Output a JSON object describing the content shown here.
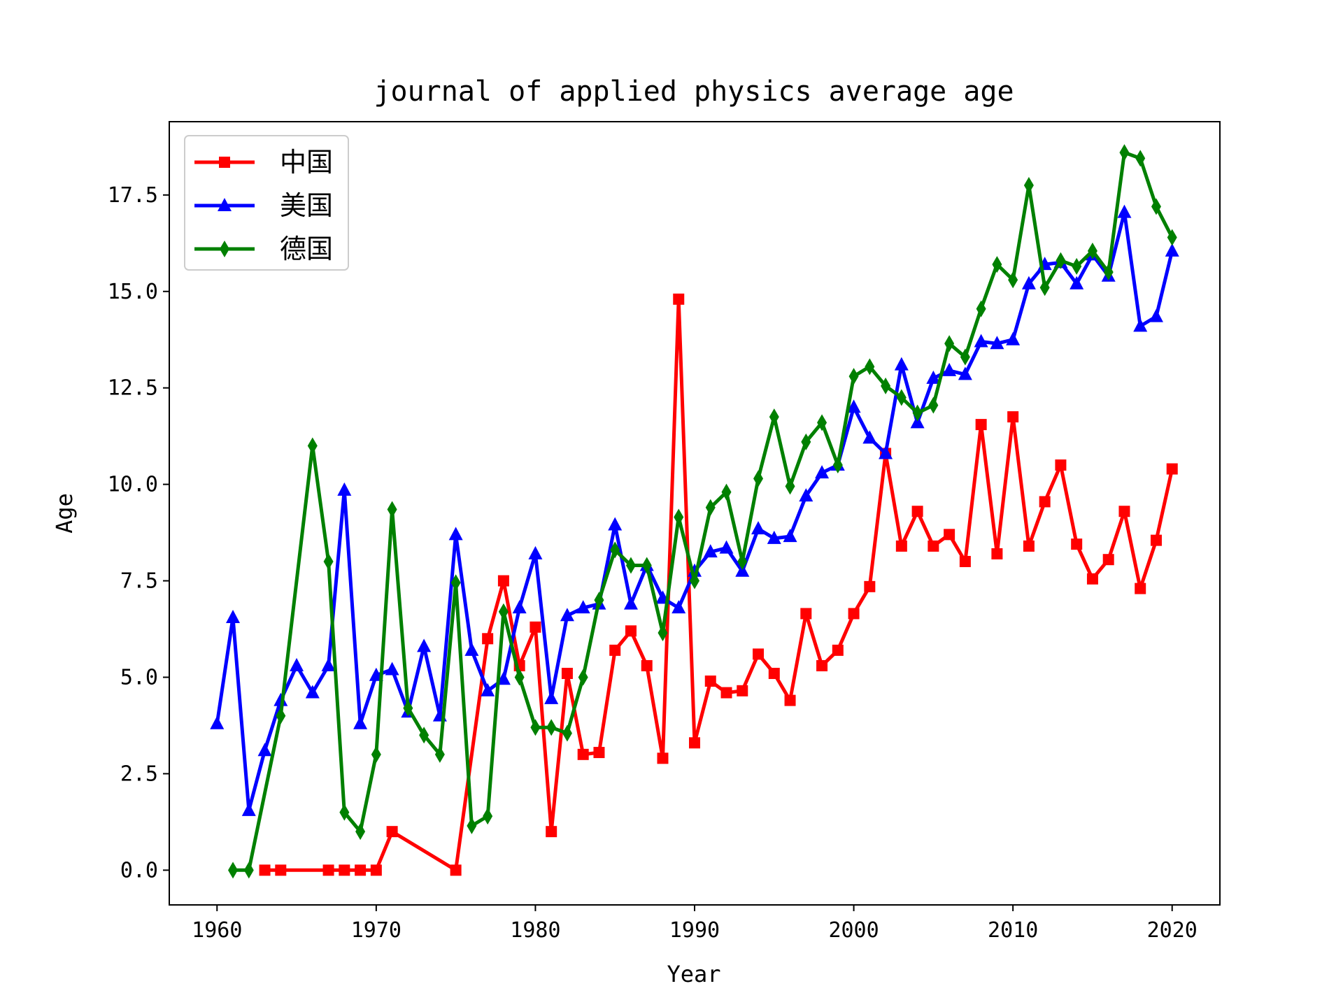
{
  "chart_data": {
    "type": "line",
    "title": "journal of applied physics average age",
    "xlabel": "Year",
    "ylabel": "Age",
    "xlim": [
      1957,
      2023
    ],
    "ylim": [
      -0.9,
      19.4
    ],
    "x_ticks": [
      1960,
      1970,
      1980,
      1990,
      2000,
      2010,
      2020
    ],
    "y_ticks": [
      0.0,
      2.5,
      5.0,
      7.5,
      10.0,
      12.5,
      15.0,
      17.5
    ],
    "y_tick_labels": [
      "0.0",
      "2.5",
      "5.0",
      "7.5",
      "10.0",
      "12.5",
      "15.0",
      "17.5"
    ],
    "x_tick_labels": [
      "1960",
      "1970",
      "1980",
      "1990",
      "2000",
      "2010",
      "2020"
    ],
    "grid": false,
    "legend_position": "top-left",
    "series": [
      {
        "name": "中国",
        "color": "#ff0000",
        "marker": "square",
        "points": [
          [
            1963,
            0
          ],
          [
            1964,
            0
          ],
          [
            1967,
            0
          ],
          [
            1968,
            0
          ],
          [
            1969,
            0
          ],
          [
            1970,
            0
          ],
          [
            1971,
            1.0
          ],
          [
            1975,
            0
          ],
          [
            1977,
            6.0
          ],
          [
            1978,
            7.5
          ],
          [
            1979,
            5.3
          ],
          [
            1980,
            6.3
          ],
          [
            1981,
            1.0
          ],
          [
            1982,
            5.1
          ],
          [
            1983,
            3.0
          ],
          [
            1984,
            3.05
          ],
          [
            1985,
            5.7
          ],
          [
            1986,
            6.2
          ],
          [
            1987,
            5.3
          ],
          [
            1988,
            2.9
          ],
          [
            1989,
            14.8
          ],
          [
            1990,
            3.3
          ],
          [
            1991,
            4.9
          ],
          [
            1992,
            4.6
          ],
          [
            1993,
            4.65
          ],
          [
            1994,
            5.6
          ],
          [
            1995,
            5.1
          ],
          [
            1996,
            4.4
          ],
          [
            1997,
            6.65
          ],
          [
            1998,
            5.3
          ],
          [
            1999,
            5.7
          ],
          [
            2000,
            6.65
          ],
          [
            2001,
            7.35
          ],
          [
            2002,
            10.8
          ],
          [
            2003,
            8.4
          ],
          [
            2004,
            9.3
          ],
          [
            2005,
            8.4
          ],
          [
            2006,
            8.7
          ],
          [
            2007,
            8.0
          ],
          [
            2008,
            11.55
          ],
          [
            2009,
            8.2
          ],
          [
            2010,
            11.75
          ],
          [
            2011,
            8.4
          ],
          [
            2012,
            9.55
          ],
          [
            2013,
            10.5
          ],
          [
            2014,
            8.45
          ],
          [
            2015,
            7.55
          ],
          [
            2016,
            8.05
          ],
          [
            2017,
            9.3
          ],
          [
            2018,
            7.3
          ],
          [
            2019,
            8.55
          ],
          [
            2020,
            10.4
          ]
        ]
      },
      {
        "name": "美国",
        "color": "#0000ff",
        "marker": "triangle",
        "points": [
          [
            1960,
            3.8
          ],
          [
            1961,
            6.55
          ],
          [
            1962,
            1.55
          ],
          [
            1963,
            3.1
          ],
          [
            1964,
            4.4
          ],
          [
            1965,
            5.3
          ],
          [
            1966,
            4.6
          ],
          [
            1967,
            5.3
          ],
          [
            1968,
            9.85
          ],
          [
            1969,
            3.8
          ],
          [
            1970,
            5.05
          ],
          [
            1971,
            5.2
          ],
          [
            1972,
            4.1
          ],
          [
            1973,
            5.8
          ],
          [
            1974,
            4.0
          ],
          [
            1975,
            8.7
          ],
          [
            1976,
            5.7
          ],
          [
            1977,
            4.65
          ],
          [
            1978,
            4.95
          ],
          [
            1979,
            6.8
          ],
          [
            1980,
            8.2
          ],
          [
            1981,
            4.45
          ],
          [
            1982,
            6.6
          ],
          [
            1983,
            6.8
          ],
          [
            1984,
            6.9
          ],
          [
            1985,
            8.95
          ],
          [
            1986,
            6.9
          ],
          [
            1987,
            7.9
          ],
          [
            1988,
            7.05
          ],
          [
            1989,
            6.8
          ],
          [
            1990,
            7.75
          ],
          [
            1991,
            8.25
          ],
          [
            1992,
            8.35
          ],
          [
            1993,
            7.75
          ],
          [
            1994,
            8.85
          ],
          [
            1995,
            8.6
          ],
          [
            1996,
            8.65
          ],
          [
            1997,
            9.7
          ],
          [
            1998,
            10.3
          ],
          [
            1999,
            10.5
          ],
          [
            2000,
            12.0
          ],
          [
            2001,
            11.2
          ],
          [
            2002,
            10.8
          ],
          [
            2003,
            13.1
          ],
          [
            2004,
            11.6
          ],
          [
            2005,
            12.75
          ],
          [
            2006,
            12.95
          ],
          [
            2007,
            12.85
          ],
          [
            2008,
            13.7
          ],
          [
            2009,
            13.65
          ],
          [
            2010,
            13.75
          ],
          [
            2011,
            15.2
          ],
          [
            2012,
            15.7
          ],
          [
            2013,
            15.75
          ],
          [
            2014,
            15.2
          ],
          [
            2015,
            15.95
          ],
          [
            2016,
            15.4
          ],
          [
            2017,
            17.05
          ],
          [
            2018,
            14.1
          ],
          [
            2019,
            14.35
          ],
          [
            2020,
            16.05
          ]
        ]
      },
      {
        "name": "德国",
        "color": "#008000",
        "marker": "diamond",
        "points": [
          [
            1961,
            0
          ],
          [
            1962,
            0
          ],
          [
            1964,
            4.0
          ],
          [
            1966,
            11.0
          ],
          [
            1967,
            8.0
          ],
          [
            1968,
            1.5
          ],
          [
            1969,
            1.0
          ],
          [
            1970,
            3.0
          ],
          [
            1971,
            9.35
          ],
          [
            1972,
            4.2
          ],
          [
            1973,
            3.5
          ],
          [
            1974,
            3.0
          ],
          [
            1975,
            7.45
          ],
          [
            1976,
            1.15
          ],
          [
            1977,
            1.4
          ],
          [
            1978,
            6.7
          ],
          [
            1979,
            5.0
          ],
          [
            1980,
            3.7
          ],
          [
            1981,
            3.7
          ],
          [
            1982,
            3.55
          ],
          [
            1983,
            5.0
          ],
          [
            1984,
            7.0
          ],
          [
            1985,
            8.3
          ],
          [
            1986,
            7.9
          ],
          [
            1987,
            7.9
          ],
          [
            1988,
            6.15
          ],
          [
            1989,
            9.15
          ],
          [
            1990,
            7.5
          ],
          [
            1991,
            9.4
          ],
          [
            1992,
            9.8
          ],
          [
            1993,
            8.0
          ],
          [
            1994,
            10.15
          ],
          [
            1995,
            11.75
          ],
          [
            1996,
            9.95
          ],
          [
            1997,
            11.1
          ],
          [
            1998,
            11.6
          ],
          [
            1999,
            10.5
          ],
          [
            2000,
            12.8
          ],
          [
            2001,
            13.05
          ],
          [
            2002,
            12.55
          ],
          [
            2003,
            12.25
          ],
          [
            2004,
            11.85
          ],
          [
            2005,
            12.05
          ],
          [
            2006,
            13.65
          ],
          [
            2007,
            13.3
          ],
          [
            2008,
            14.55
          ],
          [
            2009,
            15.7
          ],
          [
            2010,
            15.3
          ],
          [
            2011,
            17.75
          ],
          [
            2012,
            15.1
          ],
          [
            2013,
            15.8
          ],
          [
            2014,
            15.65
          ],
          [
            2015,
            16.05
          ],
          [
            2016,
            15.5
          ],
          [
            2017,
            18.6
          ],
          [
            2018,
            18.45
          ],
          [
            2019,
            17.2
          ],
          [
            2020,
            16.4
          ]
        ]
      }
    ]
  }
}
